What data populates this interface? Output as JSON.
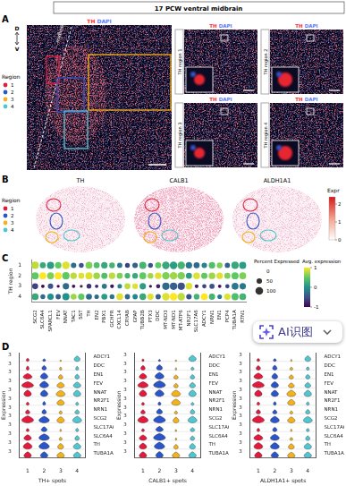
{
  "header": {
    "title": "17 PCW ventral midbrain"
  },
  "regions": {
    "title": "Region",
    "labels": [
      "1",
      "2",
      "3",
      "4"
    ],
    "colors": [
      "#e41a3c",
      "#2b55c9",
      "#f3b21c",
      "#4fc6d0"
    ]
  },
  "panel_a": {
    "letter": "A",
    "stain": {
      "labels": [
        "TH",
        "DAPI"
      ],
      "colors": [
        "#ff2a2a",
        "#5b7bff"
      ]
    },
    "axis": {
      "top": "D",
      "bottom": "V"
    },
    "midline": "midline",
    "insets": [
      "TH region 1",
      "TH region 2",
      "TH region 3",
      "TH region 4"
    ]
  },
  "panel_b": {
    "letter": "B",
    "maps": [
      "TH",
      "CALB1",
      "ALDH1A1"
    ],
    "colorbar": {
      "title": "Expr",
      "range": [
        0,
        2.4
      ],
      "ticks": [
        0,
        1,
        2
      ]
    }
  },
  "chart_data": [
    {
      "type": "dot",
      "letter": "C",
      "y_title": "TH region",
      "categories": [
        "SCG2",
        "SLC6A4",
        "SPARCL1",
        "FEV",
        "NNAT",
        "TAC1",
        "SST",
        "TH",
        "EN2",
        "PBX1",
        "GCHFR",
        "CXCL14",
        "CRYAB",
        "GFAP",
        "TUBB2B",
        "PTX3",
        "DDC",
        "MT-ND3",
        "MT-ND1",
        "MT-ATP6",
        "NR2F1",
        "SLC17A6",
        "ADCY1",
        "NRN1",
        "EN1",
        "PCP4",
        "TUBA1A",
        "RTN1"
      ],
      "rows": [
        "1",
        "2",
        "3",
        "4"
      ],
      "percent_expressed": [
        [
          90,
          60,
          85,
          70,
          95,
          50,
          40,
          80,
          60,
          70,
          55,
          45,
          40,
          50,
          85,
          40,
          60,
          95,
          95,
          95,
          70,
          60,
          50,
          70,
          55,
          45,
          90,
          85
        ],
        [
          85,
          80,
          80,
          85,
          90,
          70,
          60,
          85,
          75,
          65,
          70,
          60,
          50,
          55,
          80,
          55,
          70,
          95,
          95,
          95,
          60,
          75,
          65,
          75,
          70,
          60,
          85,
          80
        ],
        [
          60,
          20,
          50,
          15,
          70,
          20,
          15,
          40,
          20,
          45,
          25,
          35,
          60,
          55,
          70,
          15,
          30,
          90,
          90,
          90,
          75,
          25,
          30,
          45,
          20,
          30,
          80,
          70
        ],
        [
          80,
          40,
          70,
          45,
          85,
          60,
          70,
          60,
          35,
          60,
          40,
          75,
          45,
          45,
          75,
          65,
          45,
          95,
          95,
          95,
          50,
          55,
          80,
          65,
          35,
          70,
          85,
          80
        ]
      ],
      "avg_expression": [
        [
          0.8,
          0.2,
          0.1,
          0.5,
          0.9,
          -0.3,
          -0.5,
          0.6,
          0.4,
          0.2,
          0.3,
          -0.2,
          -0.6,
          -0.4,
          0.3,
          -0.5,
          0.5,
          0.2,
          0.1,
          0.3,
          -0.2,
          -0.3,
          -0.1,
          0.4,
          0.6,
          -0.4,
          0.2,
          0.1
        ],
        [
          0.5,
          1.0,
          0.6,
          1.0,
          0.5,
          0.8,
          0.9,
          0.9,
          0.7,
          0.4,
          0.8,
          0.6,
          0.3,
          0.2,
          0.5,
          0.7,
          0.9,
          0.6,
          0.7,
          0.6,
          0.1,
          0.9,
          0.5,
          0.7,
          0.9,
          0.6,
          0.5,
          0.6
        ],
        [
          -0.6,
          -1.0,
          -0.5,
          -1.0,
          -0.3,
          -0.9,
          -0.8,
          -0.7,
          -0.8,
          -0.2,
          -0.9,
          -0.1,
          0.8,
          0.9,
          0.1,
          -0.9,
          -0.8,
          -0.3,
          -0.4,
          -0.5,
          0.9,
          -0.8,
          -0.6,
          -0.5,
          -0.9,
          -0.6,
          -0.2,
          -0.2
        ],
        [
          0.2,
          -0.3,
          0.0,
          -0.4,
          0.0,
          0.7,
          0.5,
          -0.3,
          -0.3,
          0.1,
          -0.2,
          0.9,
          -0.3,
          -0.1,
          0.2,
          0.9,
          -0.4,
          0.9,
          1.0,
          0.8,
          -0.5,
          0.3,
          1.0,
          0.3,
          -0.2,
          0.9,
          0.4,
          0.3
        ]
      ],
      "size_legend": {
        "title": "Percent Expressed",
        "ticks": [
          0,
          50,
          100
        ]
      },
      "color_scale": {
        "title": "Avg. expression",
        "range": [
          -1,
          1
        ],
        "ticks": [
          1,
          0,
          -1
        ]
      }
    },
    {
      "type": "violin",
      "letter": "D",
      "y_title": "Expression",
      "genes": [
        "ADCY1",
        "DDC",
        "EN1",
        "FEV",
        "NNAT",
        "NR2F1",
        "NRN1",
        "SCG2",
        "SLC17A6",
        "SLC6A4",
        "TH",
        "TUBA1A"
      ],
      "categories": [
        "1",
        "2",
        "3",
        "4"
      ],
      "ylim": [
        0,
        4
      ],
      "yticks": [
        3
      ],
      "panels": [
        {
          "x_title": "TH+ spots",
          "max": [
            [
              1.5,
              1.2,
              0.8,
              2.5
            ],
            [
              2.0,
              2.2,
              1.5,
              1.8
            ],
            [
              2.5,
              2.8,
              2.0,
              2.2
            ],
            [
              2.8,
              3.0,
              2.5,
              2.6
            ],
            [
              3.0,
              3.0,
              2.8,
              2.9
            ],
            [
              1.5,
              1.8,
              2.6,
              1.5
            ],
            [
              2.0,
              2.2,
              1.6,
              2.0
            ],
            [
              3.2,
              3.0,
              2.8,
              3.0
            ],
            [
              1.5,
              2.2,
              1.2,
              1.6
            ],
            [
              2.6,
              3.0,
              1.5,
              2.2
            ],
            [
              3.0,
              3.2,
              2.6,
              2.8
            ],
            [
              2.8,
              2.8,
              2.6,
              2.7
            ]
          ],
          "density": [
            [
              0.2,
              0.2,
              0.1,
              0.4
            ],
            [
              0.2,
              0.3,
              0.15,
              0.2
            ],
            [
              0.6,
              0.5,
              0.3,
              0.3
            ],
            [
              0.8,
              0.6,
              0.5,
              0.5
            ],
            [
              0.5,
              0.5,
              0.6,
              0.5
            ],
            [
              0.2,
              0.2,
              0.5,
              0.2
            ],
            [
              0.3,
              0.3,
              0.2,
              0.3
            ],
            [
              0.8,
              0.7,
              0.5,
              0.6
            ],
            [
              0.2,
              0.4,
              0.1,
              0.2
            ],
            [
              0.5,
              0.7,
              0.2,
              0.3
            ],
            [
              0.6,
              0.7,
              0.4,
              0.5
            ],
            [
              0.5,
              0.5,
              0.5,
              0.5
            ]
          ]
        },
        {
          "x_title": "CALB1+ spots",
          "max": [
            [
              1.2,
              1.0,
              0.8,
              2.8
            ],
            [
              2.2,
              2.5,
              1.2,
              1.5
            ],
            [
              2.6,
              3.0,
              1.8,
              2.0
            ],
            [
              2.8,
              3.2,
              2.0,
              2.4
            ],
            [
              3.0,
              3.1,
              2.9,
              3.0
            ],
            [
              1.4,
              1.6,
              2.8,
              1.4
            ],
            [
              2.0,
              2.4,
              1.5,
              2.2
            ],
            [
              3.1,
              3.2,
              2.6,
              3.0
            ],
            [
              1.4,
              2.4,
              1.0,
              1.8
            ],
            [
              2.5,
              3.2,
              1.2,
              2.0
            ],
            [
              2.8,
              3.2,
              2.2,
              2.6
            ],
            [
              2.8,
              2.9,
              2.7,
              2.8
            ]
          ],
          "density": [
            [
              0.15,
              0.15,
              0.1,
              0.5
            ],
            [
              0.3,
              0.4,
              0.1,
              0.2
            ],
            [
              0.5,
              0.6,
              0.3,
              0.3
            ],
            [
              0.7,
              0.8,
              0.3,
              0.4
            ],
            [
              0.5,
              0.6,
              0.6,
              0.5
            ],
            [
              0.2,
              0.2,
              0.6,
              0.2
            ],
            [
              0.3,
              0.4,
              0.2,
              0.3
            ],
            [
              0.7,
              0.8,
              0.4,
              0.6
            ],
            [
              0.2,
              0.5,
              0.1,
              0.3
            ],
            [
              0.5,
              0.8,
              0.1,
              0.3
            ],
            [
              0.5,
              0.7,
              0.3,
              0.4
            ],
            [
              0.5,
              0.5,
              0.5,
              0.5
            ]
          ]
        },
        {
          "x_title": "ALDH1A1+ spots",
          "max": [
            [
              1.4,
              1.3,
              1.0,
              2.6
            ],
            [
              2.1,
              2.3,
              1.4,
              1.6
            ],
            [
              2.7,
              2.6,
              1.9,
              2.1
            ],
            [
              2.9,
              2.8,
              2.2,
              2.4
            ],
            [
              3.0,
              2.9,
              2.9,
              2.9
            ],
            [
              1.6,
              1.7,
              2.7,
              1.6
            ],
            [
              2.1,
              2.0,
              1.5,
              2.1
            ],
            [
              3.2,
              3.0,
              2.7,
              2.9
            ],
            [
              1.6,
              2.0,
              1.2,
              1.5
            ],
            [
              2.7,
              2.8,
              1.4,
              2.1
            ],
            [
              3.0,
              3.0,
              2.5,
              2.7
            ],
            [
              2.8,
              2.8,
              2.6,
              2.7
            ]
          ],
          "density": [
            [
              0.2,
              0.2,
              0.1,
              0.4
            ],
            [
              0.3,
              0.3,
              0.2,
              0.2
            ],
            [
              0.6,
              0.4,
              0.3,
              0.3
            ],
            [
              0.8,
              0.5,
              0.4,
              0.4
            ],
            [
              0.5,
              0.5,
              0.6,
              0.5
            ],
            [
              0.2,
              0.2,
              0.5,
              0.2
            ],
            [
              0.3,
              0.3,
              0.2,
              0.3
            ],
            [
              0.8,
              0.6,
              0.5,
              0.6
            ],
            [
              0.2,
              0.3,
              0.1,
              0.2
            ],
            [
              0.6,
              0.6,
              0.2,
              0.3
            ],
            [
              0.6,
              0.6,
              0.4,
              0.5
            ],
            [
              0.5,
              0.5,
              0.5,
              0.5
            ]
          ]
        }
      ]
    }
  ],
  "overlay": {
    "label": "AI识图"
  }
}
